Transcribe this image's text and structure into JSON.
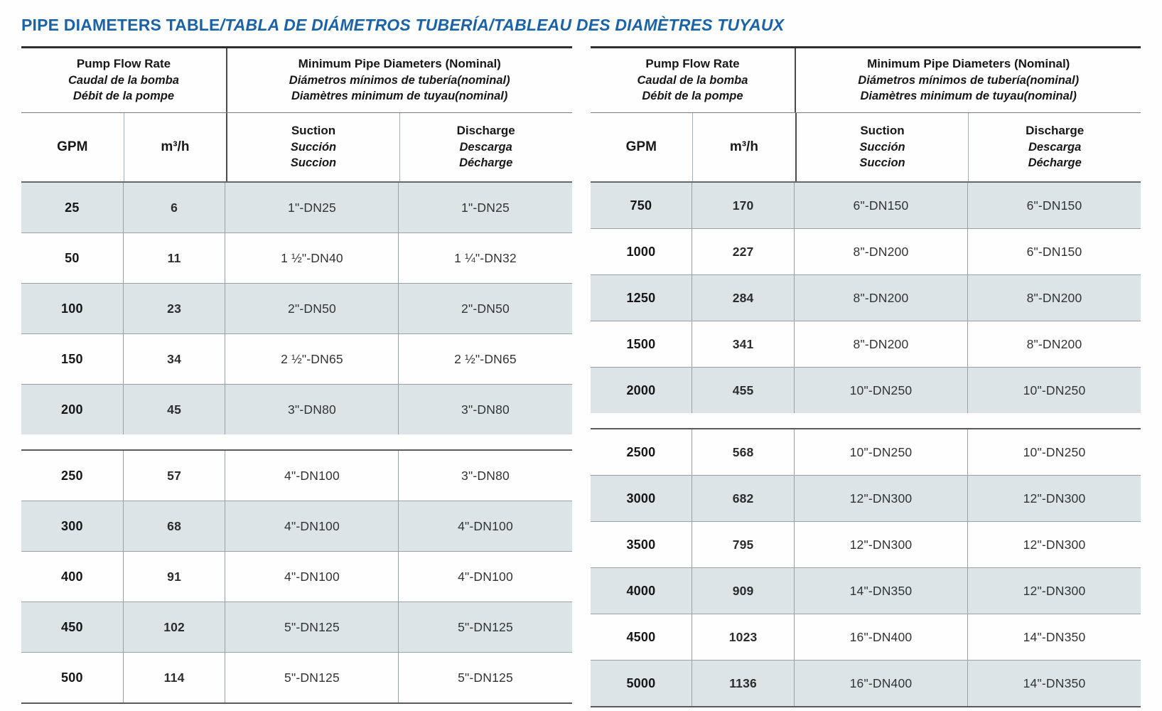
{
  "page": {
    "title_en": "PIPE DIAMETERS TABLE",
    "title_es": "TABLA DE DIÁMETROS TUBERÍA",
    "title_fr": "TABLEAU DES DIAMÈTRES TUYAUX",
    "separator": "/"
  },
  "colors": {
    "accent_blue": "#1b63a8",
    "row_shade": "#dde4e7",
    "border_dark": "#2e2e2e",
    "border_light": "#98a2a6"
  },
  "header": {
    "flow_en": "Pump Flow Rate",
    "flow_es": "Caudal de la bomba",
    "flow_fr": "Débit de la pompe",
    "diam_en": "Minimum Pipe Diameters (Nominal)",
    "diam_es": "Diámetros mínimos de tubería(nominal)",
    "diam_fr": "Diamètres minimum de tuyau(nominal)",
    "col_gpm": "GPM",
    "col_m3h": "m³/h",
    "suction_en": "Suction",
    "suction_es": "Succión",
    "suction_fr": "Succion",
    "discharge_en": "Discharge",
    "discharge_es": "Descarga",
    "discharge_fr": "Décharge"
  },
  "tables": [
    {
      "sections": [
        {
          "rows": [
            {
              "gpm": "25",
              "m3h": "6",
              "suction": "1\"-DN25",
              "discharge": "1\"-DN25"
            },
            {
              "gpm": "50",
              "m3h": "11",
              "suction": "1 ½\"-DN40",
              "discharge": "1 ¼\"-DN32"
            },
            {
              "gpm": "100",
              "m3h": "23",
              "suction": "2\"-DN50",
              "discharge": "2\"-DN50"
            },
            {
              "gpm": "150",
              "m3h": "34",
              "suction": "2 ½\"-DN65",
              "discharge": "2 ½\"-DN65"
            },
            {
              "gpm": "200",
              "m3h": "45",
              "suction": "3\"-DN80",
              "discharge": "3\"-DN80"
            }
          ]
        },
        {
          "rows": [
            {
              "gpm": "250",
              "m3h": "57",
              "suction": "4\"-DN100",
              "discharge": "3\"-DN80"
            },
            {
              "gpm": "300",
              "m3h": "68",
              "suction": "4\"-DN100",
              "discharge": "4\"-DN100"
            },
            {
              "gpm": "400",
              "m3h": "91",
              "suction": "4\"-DN100",
              "discharge": "4\"-DN100"
            },
            {
              "gpm": "450",
              "m3h": "102",
              "suction": "5\"-DN125",
              "discharge": "5\"-DN125"
            },
            {
              "gpm": "500",
              "m3h": "114",
              "suction": "5\"-DN125",
              "discharge": "5\"-DN125"
            }
          ]
        }
      ]
    },
    {
      "sections": [
        {
          "rows": [
            {
              "gpm": "750",
              "m3h": "170",
              "suction": "6\"-DN150",
              "discharge": "6\"-DN150"
            },
            {
              "gpm": "1000",
              "m3h": "227",
              "suction": "8\"-DN200",
              "discharge": "6\"-DN150"
            },
            {
              "gpm": "1250",
              "m3h": "284",
              "suction": "8\"-DN200",
              "discharge": "8\"-DN200"
            },
            {
              "gpm": "1500",
              "m3h": "341",
              "suction": "8\"-DN200",
              "discharge": "8\"-DN200"
            },
            {
              "gpm": "2000",
              "m3h": "455",
              "suction": "10\"-DN250",
              "discharge": "10\"-DN250"
            }
          ]
        },
        {
          "rows": [
            {
              "gpm": "2500",
              "m3h": "568",
              "suction": "10\"-DN250",
              "discharge": "10\"-DN250"
            },
            {
              "gpm": "3000",
              "m3h": "682",
              "suction": "12\"-DN300",
              "discharge": "12\"-DN300"
            },
            {
              "gpm": "3500",
              "m3h": "795",
              "suction": "12\"-DN300",
              "discharge": "12\"-DN300"
            },
            {
              "gpm": "4000",
              "m3h": "909",
              "suction": "14\"-DN350",
              "discharge": "12\"-DN300"
            },
            {
              "gpm": "4500",
              "m3h": "1023",
              "suction": "16\"-DN400",
              "discharge": "14\"-DN350"
            },
            {
              "gpm": "5000",
              "m3h": "1136",
              "suction": "16\"-DN400",
              "discharge": "14\"-DN350"
            }
          ]
        }
      ]
    }
  ]
}
